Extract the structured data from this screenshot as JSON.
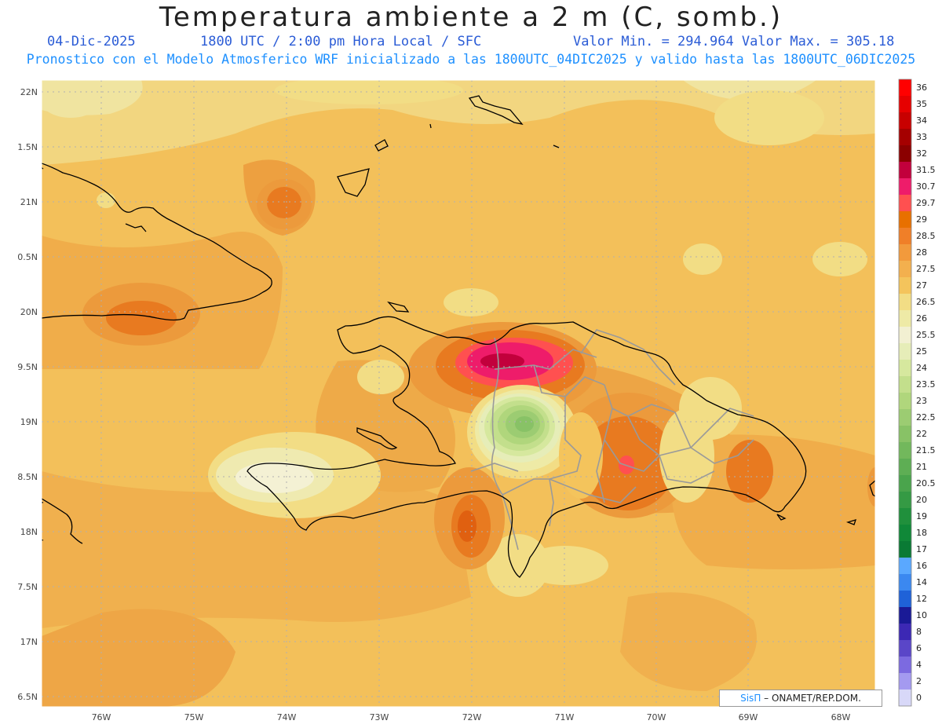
{
  "header": {
    "title": "Temperatura ambiente a 2 m (C, somb.)",
    "date": "04-Dic-2025",
    "time": "1800 UTC / 2:00 pm Hora Local / SFC",
    "min_max": "Valor Min. = 294.964  Valor Max. = 305.18",
    "forecast_note": "Pronostico con el Modelo Atmosferico WRF inicializado a las 1800UTC_04DIC2025 y valido hasta las  1800UTC_06DIC2025"
  },
  "axes": {
    "lon_labels": [
      "76W",
      "75W",
      "74W",
      "73W",
      "72W",
      "71W",
      "70W",
      "69W",
      "68W"
    ],
    "lat_labels": [
      "22N",
      "1.5N",
      "21N",
      "0.5N",
      "20N",
      "9.5N",
      "19N",
      "8.5N",
      "18N",
      "7.5N",
      "17N",
      "6.5N"
    ]
  },
  "colorbar": {
    "labels": [
      "36",
      "35",
      "34",
      "33",
      "32",
      "31.5",
      "30.7",
      "29.7",
      "29",
      "28.5",
      "28",
      "27.5",
      "27",
      "26.5",
      "26",
      "25.5",
      "25",
      "24",
      "23.5",
      "23",
      "22.5",
      "22",
      "21.5",
      "21",
      "20.5",
      "20",
      "19",
      "18",
      "17",
      "16",
      "14",
      "12",
      "10",
      "8",
      "6",
      "4",
      "2",
      "0"
    ],
    "colors": [
      "#ff0000",
      "#e60000",
      "#c80000",
      "#a50000",
      "#8b0000",
      "#c2003c",
      "#ee1c6a",
      "#ff5050",
      "#e87000",
      "#f07f28",
      "#f29a3c",
      "#f3b04e",
      "#f4c45c",
      "#f2dd85",
      "#eeeaa6",
      "#f2f0d2",
      "#e6edb8",
      "#d6e89e",
      "#c3df8c",
      "#b0d67c",
      "#9ccc72",
      "#88c266",
      "#72b85c",
      "#5eae54",
      "#4aa44c",
      "#359a44",
      "#20903c",
      "#108838",
      "#0a7a34",
      "#5aa8ff",
      "#3b88f0",
      "#1f62d8",
      "#1a1a96",
      "#3c28b4",
      "#5a46c8",
      "#7c6ae0",
      "#a49af0",
      "#d8d8f8"
    ]
  },
  "credit": {
    "logo": "SisΠ",
    "text": "– ONAMET/REP.DOM."
  }
}
